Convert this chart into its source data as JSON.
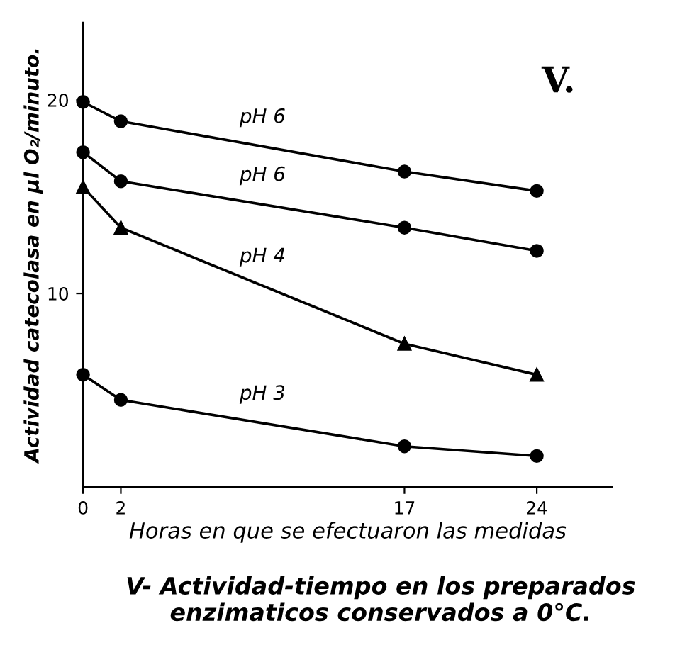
{
  "chart_data": {
    "type": "line",
    "title": "V- Actividad-tiempo en los preparados enzimaticos conservados a 0°C.",
    "xlabel": "Horas en que se efectuaron las medidas",
    "ylabel": "Actividad catecolasa en µl O₂/minuto.",
    "annotations": [
      "V."
    ],
    "x": [
      0,
      2,
      17,
      24
    ],
    "series": [
      {
        "name": "pH 6",
        "color": "#000000",
        "marker": "circle",
        "values": [
          19.9,
          18.9,
          16.3,
          15.3
        ]
      },
      {
        "name": "pH 6",
        "color": "#000000",
        "marker": "circle",
        "values": [
          17.3,
          15.8,
          13.4,
          12.2
        ]
      },
      {
        "name": "pH 4",
        "color": "#000000",
        "marker": "triangle",
        "values": [
          15.5,
          13.4,
          7.4,
          5.8
        ]
      },
      {
        "name": "pH 3",
        "color": "#000000",
        "marker": "circle",
        "values": [
          5.8,
          4.5,
          2.1,
          1.6
        ]
      }
    ],
    "xlim": [
      0,
      28
    ],
    "ylim": [
      0,
      24
    ],
    "xticks": [
      0,
      2,
      17,
      24
    ],
    "yticks": [
      10,
      20
    ],
    "grid": false,
    "legend": false,
    "line_style": "solid"
  }
}
